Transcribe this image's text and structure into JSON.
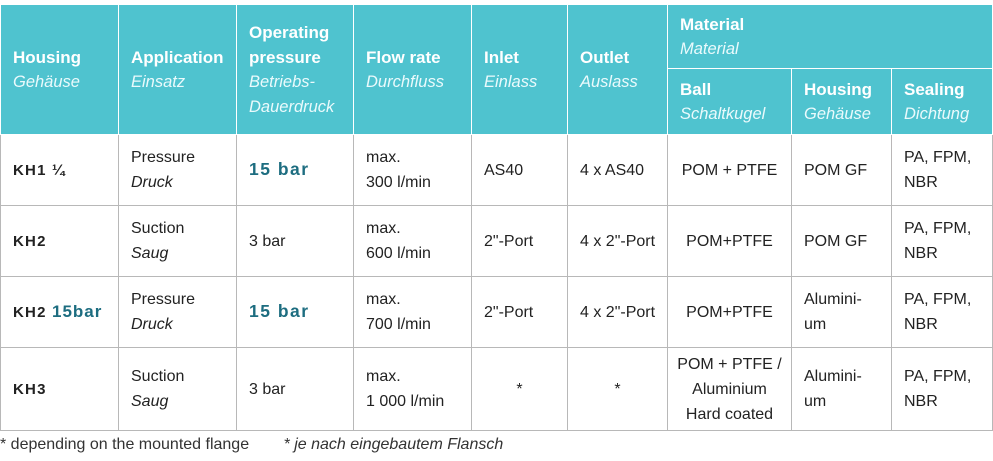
{
  "header": {
    "housing": {
      "en": "Housing",
      "de": "Gehäuse"
    },
    "application": {
      "en": "Application",
      "de": "Einsatz"
    },
    "pressure": {
      "en1": "Operating",
      "en2": "pressure",
      "de1": "Betriebs-",
      "de2": "Dauerdruck"
    },
    "flow": {
      "en": "Flow rate",
      "de": "Durchfluss"
    },
    "inlet": {
      "en": "Inlet",
      "de": "Einlass"
    },
    "outlet": {
      "en": "Outlet",
      "de": "Auslass"
    },
    "material": {
      "en": "Material",
      "de": "Material"
    },
    "ball": {
      "en": "Ball",
      "de": "Schaltkugel"
    },
    "mat_housing": {
      "en": "Housing",
      "de": "Gehäuse"
    },
    "sealing": {
      "en": "Sealing",
      "de": "Dichtung"
    }
  },
  "rows": [
    {
      "model": "KH1 ¼",
      "model_suffix": "",
      "app_en": "Pressure",
      "app_de": "Druck",
      "pressure": "15 bar",
      "flow1": "max.",
      "flow2": "300 l/min",
      "inlet": "AS40",
      "outlet": "4 x AS40",
      "ball1": "POM + PTFE",
      "ball2": "",
      "ball3": "",
      "housing1": "POM GF",
      "housing2": "",
      "sealing1": "PA, FPM,",
      "sealing2": "NBR"
    },
    {
      "model": "KH2",
      "model_suffix": "",
      "app_en": "Suction",
      "app_de": "Saug",
      "pressure": "3 bar",
      "flow1": "max.",
      "flow2": "600 l/min",
      "inlet": "2\"-Port",
      "outlet": "4 x 2\"-Port",
      "ball1": "POM+PTFE",
      "ball2": "",
      "ball3": "",
      "housing1": "POM GF",
      "housing2": "",
      "sealing1": "PA, FPM,",
      "sealing2": "NBR"
    },
    {
      "model": "KH2",
      "model_suffix": "15bar",
      "app_en": "Pressure",
      "app_de": "Druck",
      "pressure": "15 bar",
      "flow1": "max.",
      "flow2": "700 l/min",
      "inlet": "2\"-Port",
      "outlet": "4 x 2\"-Port",
      "ball1": "POM+PTFE",
      "ball2": "",
      "ball3": "",
      "housing1": "Alumini-",
      "housing2": "um",
      "sealing1": "PA, FPM,",
      "sealing2": "NBR"
    },
    {
      "model": "KH3",
      "model_suffix": "",
      "app_en": "Suction",
      "app_de": "Saug",
      "pressure": "3 bar",
      "flow1": "max.",
      "flow2": "1 000 l/min",
      "inlet": "*",
      "outlet": "*",
      "ball1": "POM + PTFE /",
      "ball2": "Aluminium",
      "ball3": "Hard coated",
      "housing1": "Alumini-",
      "housing2": "um",
      "sealing1": "PA, FPM,",
      "sealing2": "NBR"
    }
  ],
  "footnote": {
    "en": "* depending on the mounted flange",
    "de": "* je nach eingebautem Flansch"
  },
  "colors": {
    "header_bg": "#4fc3cf",
    "highlight": "#1d6d80"
  }
}
